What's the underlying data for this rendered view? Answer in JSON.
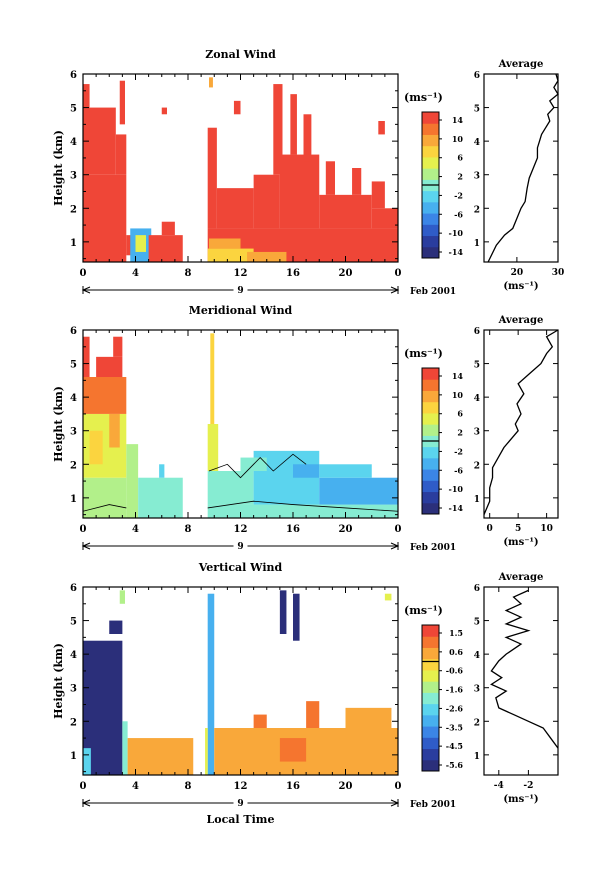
{
  "figure": {
    "xlabel_bottom": "Local Time"
  },
  "chart_data": [
    {
      "type": "heatmap",
      "title": "Zonal Wind",
      "ylabel": "Height (km)",
      "ylim": [
        0.4,
        6
      ],
      "yticks": [
        "1",
        "2",
        "3",
        "4",
        "5",
        "6"
      ],
      "xlim": [
        0,
        24
      ],
      "xticks": [
        "0",
        "4",
        "8",
        "12",
        "16",
        "20",
        "0"
      ],
      "day_label": "9",
      "month_label": "Feb 2001",
      "colorbar": {
        "unit": "(ms⁻¹)",
        "ticks": [
          "14",
          "10",
          "6",
          "2",
          "-2",
          "-6",
          "-10",
          "-14"
        ],
        "range": [
          -16,
          16
        ],
        "colors": [
          "#2b2f7a",
          "#2a3d9e",
          "#2f5cc8",
          "#3b85e6",
          "#47b0ef",
          "#5bd4ee",
          "#86ecd2",
          "#b2f08a",
          "#e5f04e",
          "#fbd43f",
          "#f9a83a",
          "#f5752f",
          "#ef4637"
        ]
      },
      "cells": [
        {
          "x": [
            0,
            3.3
          ],
          "y": [
            0.4,
            3.0
          ],
          "v": 15
        },
        {
          "x": [
            0,
            2.5
          ],
          "y": [
            3.0,
            5.0
          ],
          "v": 15
        },
        {
          "x": [
            2.5,
            3.3
          ],
          "y": [
            3.0,
            4.2
          ],
          "v": 15
        },
        {
          "x": [
            2.8,
            3.2
          ],
          "y": [
            4.5,
            5.8
          ],
          "v": 15
        },
        {
          "x": [
            0,
            0.5
          ],
          "y": [
            5.0,
            5.7
          ],
          "v": 15
        },
        {
          "x": [
            3.3,
            3.8
          ],
          "y": [
            0.6,
            1.2
          ],
          "v": 15
        },
        {
          "x": [
            3.6,
            5.2
          ],
          "y": [
            0.4,
            1.4
          ],
          "v": -6
        },
        {
          "x": [
            4.0,
            4.8
          ],
          "y": [
            0.7,
            1.2
          ],
          "v": 4
        },
        {
          "x": [
            5.0,
            7.6
          ],
          "y": [
            0.4,
            1.2
          ],
          "v": 15
        },
        {
          "x": [
            6.0,
            7.0
          ],
          "y": [
            1.2,
            1.6
          ],
          "v": 15
        },
        {
          "x": [
            9.5,
            24
          ],
          "y": [
            0.4,
            1.4
          ],
          "v": 15
        },
        {
          "x": [
            9.5,
            13
          ],
          "y": [
            0.4,
            0.8
          ],
          "v": 7
        },
        {
          "x": [
            12.5,
            15.5
          ],
          "y": [
            0.4,
            0.7
          ],
          "v": 9
        },
        {
          "x": [
            9.6,
            12
          ],
          "y": [
            0.8,
            1.1
          ],
          "v": 11
        },
        {
          "x": [
            9.5,
            10.2
          ],
          "y": [
            1.4,
            4.4
          ],
          "v": 15
        },
        {
          "x": [
            10.2,
            13
          ],
          "y": [
            1.4,
            2.6
          ],
          "v": 15
        },
        {
          "x": [
            13,
            15
          ],
          "y": [
            1.4,
            3.0
          ],
          "v": 15
        },
        {
          "x": [
            15,
            18
          ],
          "y": [
            1.4,
            3.6
          ],
          "v": 15
        },
        {
          "x": [
            18,
            22
          ],
          "y": [
            1.4,
            2.4
          ],
          "v": 15
        },
        {
          "x": [
            22,
            24
          ],
          "y": [
            1.4,
            2.0
          ],
          "v": 15
        },
        {
          "x": [
            14.5,
            15.2
          ],
          "y": [
            3.0,
            5.7
          ],
          "v": 15
        },
        {
          "x": [
            15.8,
            16.3
          ],
          "y": [
            3.6,
            5.4
          ],
          "v": 15
        },
        {
          "x": [
            16.8,
            17.4
          ],
          "y": [
            3.4,
            4.8
          ],
          "v": 15
        },
        {
          "x": [
            18.5,
            19.2
          ],
          "y": [
            2.4,
            3.4
          ],
          "v": 15
        },
        {
          "x": [
            20.5,
            21.2
          ],
          "y": [
            2.4,
            3.2
          ],
          "v": 15
        },
        {
          "x": [
            22,
            23
          ],
          "y": [
            2.0,
            2.8
          ],
          "v": 15
        },
        {
          "x": [
            9.6,
            9.9
          ],
          "y": [
            5.6,
            5.9
          ],
          "v": 10
        },
        {
          "x": [
            22.5,
            23
          ],
          "y": [
            4.2,
            4.6
          ],
          "v": 15
        },
        {
          "x": [
            11.5,
            12
          ],
          "y": [
            4.8,
            5.2
          ],
          "v": 15
        },
        {
          "x": [
            6.0,
            6.4
          ],
          "y": [
            4.8,
            5.0
          ],
          "v": 15
        }
      ],
      "contours": [],
      "average": {
        "xlabel": "(ms⁻¹)",
        "xlim": [
          12,
          30
        ],
        "xticks": [
          "20",
          "30"
        ],
        "title": "Average",
        "profile": [
          [
            13,
            0.4
          ],
          [
            15,
            0.9
          ],
          [
            17,
            1.2
          ],
          [
            19,
            1.4
          ],
          [
            20,
            1.7
          ],
          [
            21,
            2.0
          ],
          [
            22,
            2.2
          ],
          [
            22.5,
            2.6
          ],
          [
            23,
            2.9
          ],
          [
            24,
            3.2
          ],
          [
            25,
            3.5
          ],
          [
            25,
            3.8
          ],
          [
            25.5,
            4.0
          ],
          [
            26,
            4.2
          ],
          [
            27,
            4.4
          ],
          [
            28,
            4.6
          ],
          [
            27.5,
            4.8
          ],
          [
            29,
            5.0
          ],
          [
            28,
            5.2
          ],
          [
            30,
            5.4
          ],
          [
            29,
            5.6
          ],
          [
            30,
            5.8
          ],
          [
            29.5,
            6.0
          ]
        ]
      }
    },
    {
      "type": "heatmap",
      "title": "Meridional Wind",
      "ylabel": "Height (km)",
      "ylim": [
        0.4,
        6
      ],
      "yticks": [
        "1",
        "2",
        "3",
        "4",
        "5",
        "6"
      ],
      "xlim": [
        0,
        24
      ],
      "xticks": [
        "0",
        "4",
        "8",
        "12",
        "16",
        "20",
        "0"
      ],
      "day_label": "9",
      "month_label": "Feb 2001",
      "colorbar": {
        "unit": "(ms⁻¹)",
        "ticks": [
          "14",
          "10",
          "6",
          "2",
          "-2",
          "-6",
          "-10",
          "-14"
        ],
        "range": [
          -16,
          16
        ],
        "colors": [
          "#2b2f7a",
          "#2a3d9e",
          "#2f5cc8",
          "#3b85e6",
          "#47b0ef",
          "#5bd4ee",
          "#86ecd2",
          "#b2f08a",
          "#e5f04e",
          "#fbd43f",
          "#f9a83a",
          "#f5752f",
          "#ef4637"
        ]
      },
      "cells": [
        {
          "x": [
            0,
            3.3
          ],
          "y": [
            0.4,
            1.6
          ],
          "v": 2
        },
        {
          "x": [
            0,
            3.3
          ],
          "y": [
            1.6,
            3.5
          ],
          "v": 5
        },
        {
          "x": [
            0,
            3.3
          ],
          "y": [
            3.5,
            4.6
          ],
          "v": 12
        },
        {
          "x": [
            0,
            0.5
          ],
          "y": [
            4.6,
            5.8
          ],
          "v": 15
        },
        {
          "x": [
            1.0,
            3.0
          ],
          "y": [
            4.6,
            5.2
          ],
          "v": 15
        },
        {
          "x": [
            2.3,
            3.0
          ],
          "y": [
            5.2,
            5.8
          ],
          "v": 15
        },
        {
          "x": [
            0.5,
            1.5
          ],
          "y": [
            2.0,
            3.0
          ],
          "v": 8
        },
        {
          "x": [
            2.0,
            2.8
          ],
          "y": [
            2.5,
            3.5
          ],
          "v": 9
        },
        {
          "x": [
            3.3,
            4.2
          ],
          "y": [
            0.4,
            2.6
          ],
          "v": 3
        },
        {
          "x": [
            4.2,
            7.6
          ],
          "y": [
            0.4,
            1.6
          ],
          "v": 1
        },
        {
          "x": [
            5.8,
            6.2
          ],
          "y": [
            1.6,
            2.0
          ],
          "v": -3
        },
        {
          "x": [
            9.5,
            24
          ],
          "y": [
            0.4,
            0.8
          ],
          "v": 1
        },
        {
          "x": [
            9.5,
            13
          ],
          "y": [
            0.8,
            1.8
          ],
          "v": 1
        },
        {
          "x": [
            13,
            18
          ],
          "y": [
            0.8,
            2.4
          ],
          "v": -3
        },
        {
          "x": [
            18,
            24
          ],
          "y": [
            0.8,
            1.6
          ],
          "v": -4
        },
        {
          "x": [
            16,
            18
          ],
          "y": [
            1.6,
            2.0
          ],
          "v": -5
        },
        {
          "x": [
            9.5,
            10.3
          ],
          "y": [
            1.8,
            3.2
          ],
          "v": 6
        },
        {
          "x": [
            9.7,
            10.0
          ],
          "y": [
            3.2,
            5.9
          ],
          "v": 7
        },
        {
          "x": [
            12,
            14
          ],
          "y": [
            1.8,
            2.2
          ],
          "v": -1
        },
        {
          "x": [
            18,
            22
          ],
          "y": [
            1.6,
            2.0
          ],
          "v": -2
        }
      ],
      "contours": [
        [
          [
            0,
            0.6
          ],
          [
            2,
            0.8
          ],
          [
            3.3,
            0.7
          ]
        ],
        [
          [
            9.5,
            0.7
          ],
          [
            13,
            0.9
          ],
          [
            16,
            0.8
          ],
          [
            20,
            0.7
          ],
          [
            24,
            0.6
          ]
        ],
        [
          [
            9.6,
            1.8
          ],
          [
            11,
            2.0
          ],
          [
            12,
            1.6
          ],
          [
            13.5,
            2.2
          ],
          [
            14.5,
            1.8
          ],
          [
            16,
            2.3
          ],
          [
            17,
            2.0
          ]
        ]
      ],
      "average": {
        "xlabel": "(ms⁻¹)",
        "xlim": [
          -1,
          12
        ],
        "xticks": [
          "0",
          "5",
          "10"
        ],
        "title": "Average",
        "profile": [
          [
            -1,
            0.5
          ],
          [
            0,
            0.9
          ],
          [
            0,
            1.3
          ],
          [
            0.5,
            1.6
          ],
          [
            0.5,
            1.9
          ],
          [
            1.5,
            2.2
          ],
          [
            2.5,
            2.5
          ],
          [
            4,
            2.8
          ],
          [
            5,
            3.0
          ],
          [
            4.5,
            3.2
          ],
          [
            5.5,
            3.5
          ],
          [
            4.8,
            3.8
          ],
          [
            6,
            4.1
          ],
          [
            5,
            4.4
          ],
          [
            7,
            4.7
          ],
          [
            9,
            5.0
          ],
          [
            10,
            5.3
          ],
          [
            11,
            5.5
          ],
          [
            10,
            5.8
          ],
          [
            12,
            6.0
          ]
        ]
      }
    },
    {
      "type": "heatmap",
      "title": "Vertical Wind",
      "ylabel": "Height (km)",
      "ylim": [
        0.4,
        6
      ],
      "yticks": [
        "1",
        "2",
        "3",
        "4",
        "5",
        "6"
      ],
      "xlim": [
        0,
        24
      ],
      "xticks": [
        "0",
        "4",
        "8",
        "12",
        "16",
        "20",
        "0"
      ],
      "day_label": "9",
      "month_label": "Feb 2001",
      "colorbar": {
        "unit": "(ms⁻¹)",
        "ticks": [
          "1.5",
          "0.6",
          "-0.6",
          "-1.6",
          "-2.6",
          "-3.5",
          "-4.5",
          "-5.6"
        ],
        "range": [
          -6,
          2
        ],
        "colors": [
          "#2b2f7a",
          "#2a3d9e",
          "#2f5cc8",
          "#3b85e6",
          "#47b0ef",
          "#5bd4ee",
          "#86ecd2",
          "#b2f08a",
          "#e5f04e",
          "#fbd43f",
          "#f9a83a",
          "#f5752f",
          "#ef4637"
        ]
      },
      "cells": [
        {
          "x": [
            0,
            3.0
          ],
          "y": [
            0.4,
            4.4
          ],
          "v": -5.8
        },
        {
          "x": [
            0,
            0.6
          ],
          "y": [
            0.4,
            1.2
          ],
          "v": -2.6
        },
        {
          "x": [
            3.0,
            3.4
          ],
          "y": [
            0.4,
            2.0
          ],
          "v": -2.0
        },
        {
          "x": [
            3.4,
            8.4
          ],
          "y": [
            0.4,
            1.5
          ],
          "v": 0.6
        },
        {
          "x": [
            9.5,
            10.0
          ],
          "y": [
            0.4,
            5.8
          ],
          "v": -3.0
        },
        {
          "x": [
            9.3,
            9.5
          ],
          "y": [
            0.4,
            1.8
          ],
          "v": -0.5
        },
        {
          "x": [
            10,
            24
          ],
          "y": [
            0.4,
            1.8
          ],
          "v": 0.6
        },
        {
          "x": [
            15,
            17
          ],
          "y": [
            0.8,
            1.5
          ],
          "v": 1.0
        },
        {
          "x": [
            13,
            14
          ],
          "y": [
            1.8,
            2.2
          ],
          "v": 0.8
        },
        {
          "x": [
            17,
            18
          ],
          "y": [
            1.8,
            2.6
          ],
          "v": 0.8
        },
        {
          "x": [
            20,
            23.5
          ],
          "y": [
            1.8,
            2.4
          ],
          "v": 0.6
        },
        {
          "x": [
            15.0,
            15.5
          ],
          "y": [
            4.6,
            5.9
          ],
          "v": -5.8
        },
        {
          "x": [
            16.0,
            16.5
          ],
          "y": [
            4.4,
            5.8
          ],
          "v": -5.8
        },
        {
          "x": [
            2.0,
            3.0
          ],
          "y": [
            4.6,
            5.0
          ],
          "v": -5.8
        },
        {
          "x": [
            2.8,
            3.2
          ],
          "y": [
            5.5,
            5.9
          ],
          "v": -1.2
        },
        {
          "x": [
            23,
            23.5
          ],
          "y": [
            5.6,
            5.8
          ],
          "v": -0.6
        }
      ],
      "contours": [],
      "average": {
        "xlabel": "(ms⁻¹)",
        "xlim": [
          -5,
          0
        ],
        "xticks": [
          "-4",
          "-2"
        ],
        "title": "Average",
        "profile": [
          [
            0,
            1.2
          ],
          [
            -0.5,
            1.5
          ],
          [
            -1,
            1.8
          ],
          [
            -2,
            2.0
          ],
          [
            -3,
            2.2
          ],
          [
            -4,
            2.4
          ],
          [
            -4.2,
            2.7
          ],
          [
            -3.5,
            2.9
          ],
          [
            -4.5,
            3.1
          ],
          [
            -3.8,
            3.3
          ],
          [
            -4.5,
            3.5
          ],
          [
            -4,
            3.8
          ],
          [
            -3.5,
            4.0
          ],
          [
            -2.5,
            4.3
          ],
          [
            -3.5,
            4.5
          ],
          [
            -2,
            4.7
          ],
          [
            -3.5,
            4.9
          ],
          [
            -2.5,
            5.1
          ],
          [
            -3.5,
            5.3
          ],
          [
            -2.5,
            5.5
          ],
          [
            -3,
            5.7
          ],
          [
            -2,
            5.9
          ]
        ]
      }
    }
  ]
}
